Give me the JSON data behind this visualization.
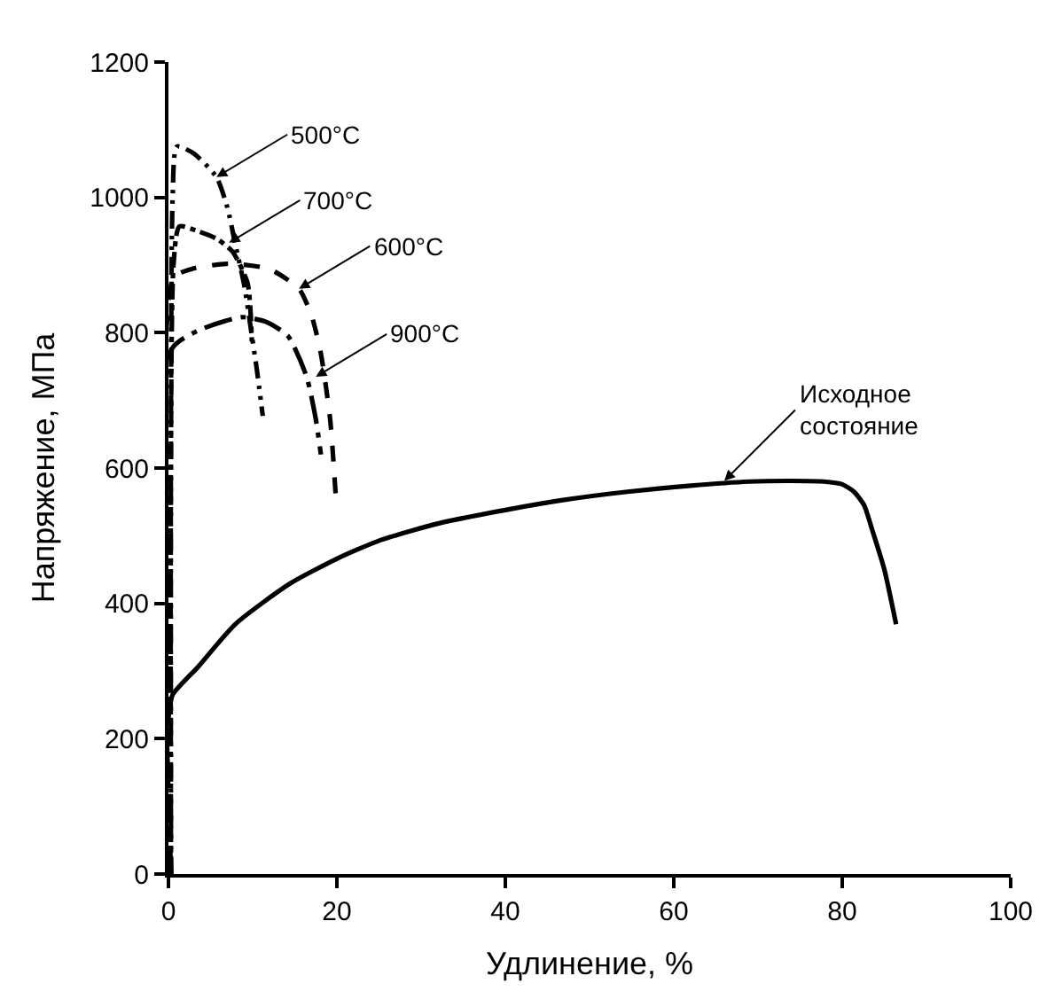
{
  "chart_data": {
    "type": "line",
    "xlabel": "Удлинение, %",
    "ylabel": "Напряжение, МПа",
    "xlim": [
      0,
      100
    ],
    "xticks": [
      0,
      20,
      40,
      60,
      80,
      100
    ],
    "ylim": [
      0,
      1200
    ],
    "yticks": [
      0,
      200,
      400,
      600,
      800,
      1000,
      1200
    ],
    "marker": "none",
    "series": [
      {
        "color": "#000000",
        "line_style": "solid",
        "x": [
          0,
          0.5,
          3.5,
          8,
          14.4,
          20,
          25.3,
          32,
          40,
          47,
          54.5,
          62,
          69,
          74,
          77.8,
          80,
          81.4,
          82.6,
          83.6,
          85,
          86.4
        ],
        "values": [
          230,
          265,
          306,
          370,
          429,
          466,
          494,
          518,
          538,
          553,
          565,
          574,
          580,
          581,
          580,
          576,
          565,
          545,
          507,
          450,
          369
        ]
      },
      {
        "color": "#000000",
        "line_style": "dashdotdot",
        "x": [
          0.3,
          0.5,
          1,
          3,
          5.7,
          7,
          7.9,
          9,
          9.7,
          10.5,
          11.2
        ],
        "values": [
          0,
          1000,
          1075,
          1065,
          1030,
          985,
          933,
          870,
          813,
          745,
          677
        ]
      },
      {
        "color": "#000000",
        "line_style": "dashdot",
        "x": [
          0.3,
          0.6,
          1.3,
          3.5,
          5.7,
          7.6,
          9.4,
          9.9
        ],
        "values": [
          0,
          900,
          957,
          950,
          939,
          920,
          873,
          787
        ]
      },
      {
        "color": "#000000",
        "line_style": "dashed",
        "x": [
          0.3,
          0.6,
          3,
          7.2,
          12,
          15.5,
          17,
          18.1,
          19.2,
          19.9
        ],
        "values": [
          0,
          881,
          895,
          902,
          894,
          865,
          825,
          769,
          672,
          552
        ]
      },
      {
        "color": "#000000",
        "line_style": "longdashdot",
        "x": [
          0.3,
          0.4,
          3.5,
          8.7,
          11.6,
          14.2,
          16.4,
          17.5,
          18.1
        ],
        "values": [
          0,
          776,
          803,
          823,
          816,
          795,
          735,
          672,
          620
        ]
      }
    ],
    "annotations": [
      {
        "text": "500°C",
        "x": 5.7,
        "y": 1030
      },
      {
        "text": "700°C",
        "x": 7.2,
        "y": 933
      },
      {
        "text": "600°C",
        "x": 15.5,
        "y": 865
      },
      {
        "text": "900°C",
        "x": 17.5,
        "y": 735
      },
      {
        "text": "Исходное\nсостояние",
        "x": 66,
        "y": 581
      }
    ]
  }
}
